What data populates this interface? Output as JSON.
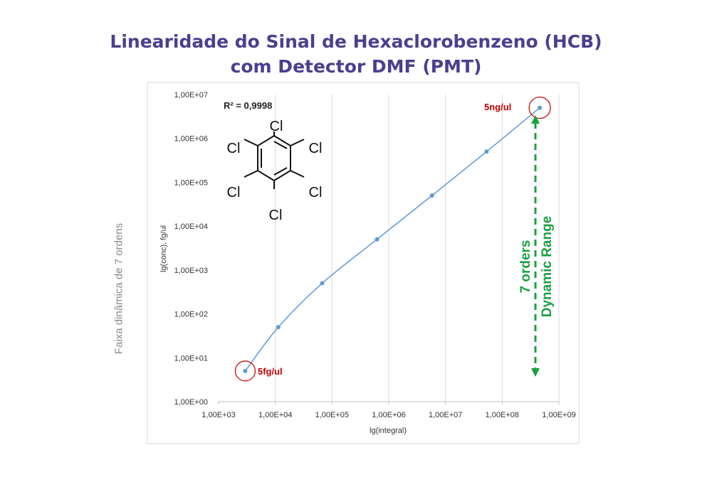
{
  "title_line1": "Linearidade do Sinal de Hexaclorobenzeno (HCB)",
  "title_line2": "com Detector DMF (PMT)",
  "side_label": "Faixa dinâmica de 7 ordens",
  "chart_data": {
    "type": "scatter",
    "title": "",
    "xlabel": "lg(integral)",
    "ylabel": "lg(conc), fg/ul",
    "x_scale": "log",
    "y_scale": "log",
    "xlim": [
      1000,
      1000000000
    ],
    "ylim": [
      1,
      10000000
    ],
    "x_ticks": [
      "1,00E+03",
      "1,00E+04",
      "1,00E+05",
      "1,00E+06",
      "1,00E+07",
      "1,00E+08",
      "1,00E+09"
    ],
    "y_ticks": [
      "1,00E+00",
      "1,00E+01",
      "1,00E+02",
      "1,00E+03",
      "1,00E+04",
      "1,00E+05",
      "1,00E+06",
      "1,00E+07"
    ],
    "grid": "vertical",
    "series": [
      {
        "x": [
          2950,
          11300,
          67000,
          620000,
          5800000,
          53000000,
          460000000
        ],
        "y": [
          5,
          50,
          500,
          5000,
          50000,
          500000,
          5000000
        ]
      }
    ],
    "annotations": {
      "r2": "R² = 0,9998",
      "low_label": "5fg/ul",
      "high_label": "5ng/ul",
      "range_line1": "7 orders",
      "range_line2": "Dynamic Range"
    },
    "molecule_labels": [
      "Cl",
      "Cl",
      "Cl",
      "Cl",
      "Cl",
      "Cl"
    ]
  },
  "colors": {
    "title": "#4b3f8f",
    "line": "#5b9bd5",
    "marker": "#5b9bd5",
    "highlight": "#c00000",
    "range": "#1aa040",
    "grid": "#d9d9d9",
    "axis_text": "#333333"
  }
}
